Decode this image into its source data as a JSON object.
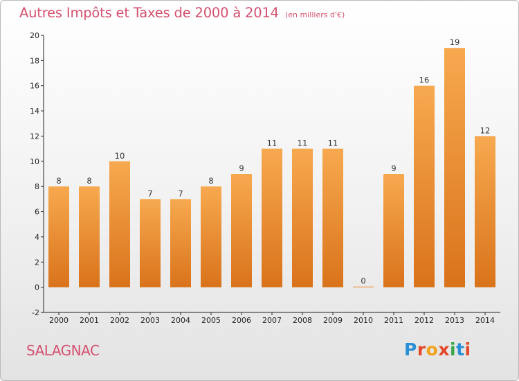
{
  "header": {
    "title": "Autres Impôts et Taxes de 2000 à 2014",
    "subtitle": "(en milliers d'€)"
  },
  "footer": {
    "town": "SALAGNAC",
    "logo_text": "Proxiti"
  },
  "colors": {
    "bar_light": "#f7a94f",
    "bar_dark": "#d9731b",
    "accent_text": "#d4506e",
    "logo_letters": [
      "#2a8fd6",
      "#e4472a",
      "#f2a21c",
      "#e4472a",
      "#3aa64a",
      "#2a8fd6",
      "#e4472a"
    ]
  },
  "chart_data": {
    "type": "bar",
    "categories": [
      "2000",
      "2001",
      "2002",
      "2003",
      "2004",
      "2005",
      "2006",
      "2007",
      "2008",
      "2009",
      "2010",
      "2011",
      "2012",
      "2013",
      "2014"
    ],
    "values": [
      8,
      8,
      10,
      7,
      7,
      8,
      9,
      11,
      11,
      11,
      0,
      9,
      16,
      19,
      12
    ],
    "ylim": [
      -2,
      20
    ],
    "yticks": [
      -2,
      0,
      2,
      4,
      6,
      8,
      10,
      12,
      14,
      16,
      18,
      20
    ],
    "grid": false
  }
}
